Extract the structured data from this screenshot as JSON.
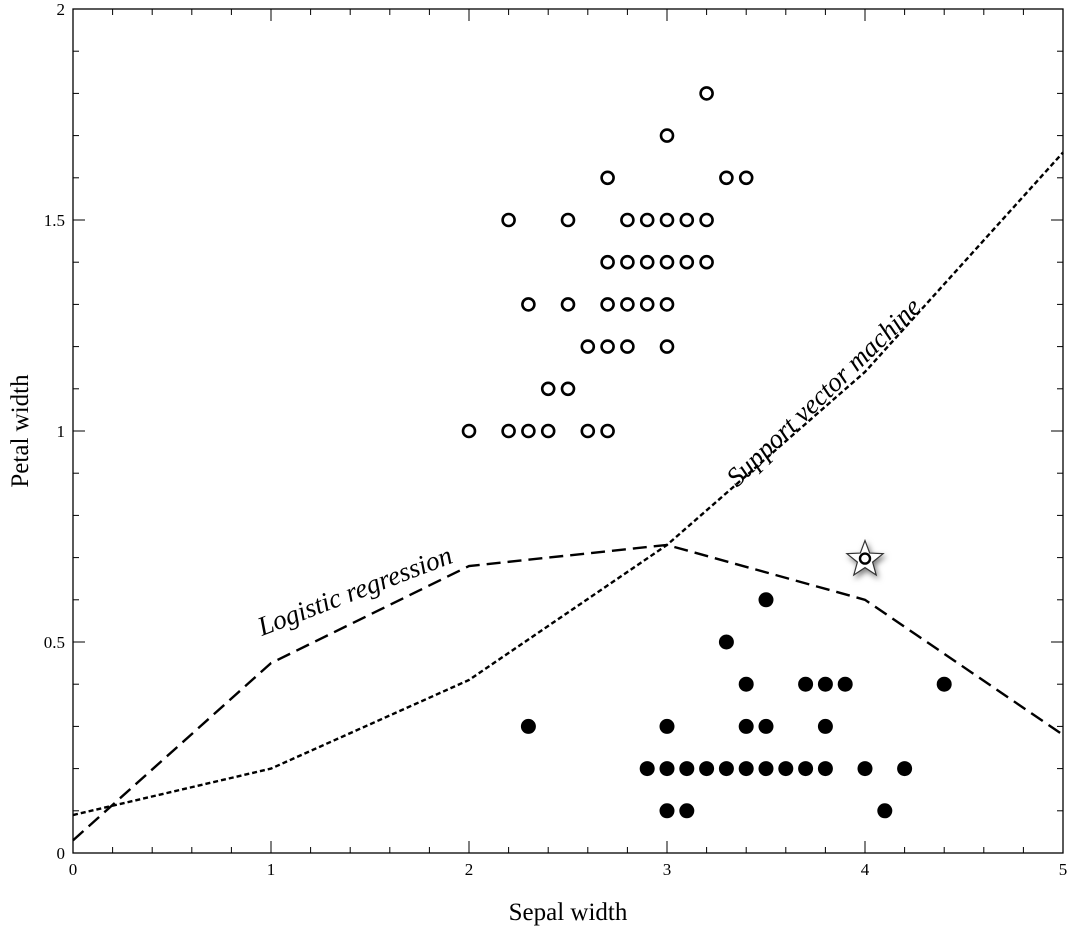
{
  "chart_data": {
    "type": "scatter",
    "xlabel": "Sepal width",
    "ylabel": "Petal width",
    "xlim": [
      0,
      5
    ],
    "ylim": [
      0,
      2
    ],
    "xticks": [
      "0",
      "1",
      "2",
      "3",
      "4",
      "5"
    ],
    "yticks": [
      "0",
      "0.5",
      "1",
      "1.5",
      "2"
    ],
    "xtick_values": [
      0,
      1,
      2,
      3,
      4,
      5
    ],
    "ytick_values": [
      0,
      0.5,
      1,
      1.5,
      2
    ],
    "grid": false,
    "series": [
      {
        "marker": "open-circle",
        "points": [
          [
            3.2,
            1.8
          ],
          [
            3.0,
            1.7
          ],
          [
            2.7,
            1.6
          ],
          [
            3.3,
            1.6
          ],
          [
            3.4,
            1.6
          ],
          [
            2.2,
            1.5
          ],
          [
            2.5,
            1.5
          ],
          [
            2.8,
            1.5
          ],
          [
            2.9,
            1.5
          ],
          [
            3.0,
            1.5
          ],
          [
            3.1,
            1.5
          ],
          [
            3.2,
            1.5
          ],
          [
            2.7,
            1.4
          ],
          [
            2.8,
            1.4
          ],
          [
            2.9,
            1.4
          ],
          [
            3.0,
            1.4
          ],
          [
            3.1,
            1.4
          ],
          [
            3.2,
            1.4
          ],
          [
            2.3,
            1.3
          ],
          [
            2.5,
            1.3
          ],
          [
            2.7,
            1.3
          ],
          [
            2.8,
            1.3
          ],
          [
            2.9,
            1.3
          ],
          [
            3.0,
            1.3
          ],
          [
            2.6,
            1.2
          ],
          [
            2.7,
            1.2
          ],
          [
            2.8,
            1.2
          ],
          [
            3.0,
            1.2
          ],
          [
            2.4,
            1.1
          ],
          [
            2.5,
            1.1
          ],
          [
            2.0,
            1.0
          ],
          [
            2.2,
            1.0
          ],
          [
            2.3,
            1.0
          ],
          [
            2.4,
            1.0
          ],
          [
            2.6,
            1.0
          ],
          [
            2.7,
            1.0
          ]
        ]
      },
      {
        "marker": "filled-circle",
        "points": [
          [
            3.5,
            0.6
          ],
          [
            3.3,
            0.5
          ],
          [
            3.4,
            0.4
          ],
          [
            3.7,
            0.4
          ],
          [
            3.8,
            0.4
          ],
          [
            3.9,
            0.4
          ],
          [
            4.4,
            0.4
          ],
          [
            2.3,
            0.3
          ],
          [
            3.0,
            0.3
          ],
          [
            3.4,
            0.3
          ],
          [
            3.5,
            0.3
          ],
          [
            3.8,
            0.3
          ],
          [
            2.9,
            0.2
          ],
          [
            3.0,
            0.2
          ],
          [
            3.1,
            0.2
          ],
          [
            3.2,
            0.2
          ],
          [
            3.3,
            0.2
          ],
          [
            3.4,
            0.2
          ],
          [
            3.5,
            0.2
          ],
          [
            3.6,
            0.2
          ],
          [
            3.7,
            0.2
          ],
          [
            3.8,
            0.2
          ],
          [
            4.0,
            0.2
          ],
          [
            4.2,
            0.2
          ],
          [
            3.0,
            0.1
          ],
          [
            3.1,
            0.1
          ],
          [
            4.1,
            0.1
          ]
        ]
      },
      {
        "marker": "star",
        "points": [
          [
            4.0,
            0.7
          ]
        ]
      }
    ],
    "lines": [
      {
        "name": "Logistic regression",
        "style": "dashed",
        "points": [
          [
            0,
            0.03
          ],
          [
            1,
            0.45
          ],
          [
            2,
            0.68
          ],
          [
            3,
            0.73
          ],
          [
            4,
            0.6
          ],
          [
            5,
            0.28
          ]
        ]
      },
      {
        "name": "Support vector machine",
        "style": "dotted",
        "points": [
          [
            0,
            0.09
          ],
          [
            1,
            0.2
          ],
          [
            2,
            0.41
          ],
          [
            3,
            0.73
          ],
          [
            4,
            1.14
          ],
          [
            5,
            1.66
          ]
        ]
      }
    ],
    "colors": {
      "ink": "#000000",
      "background": "#ffffff"
    }
  }
}
